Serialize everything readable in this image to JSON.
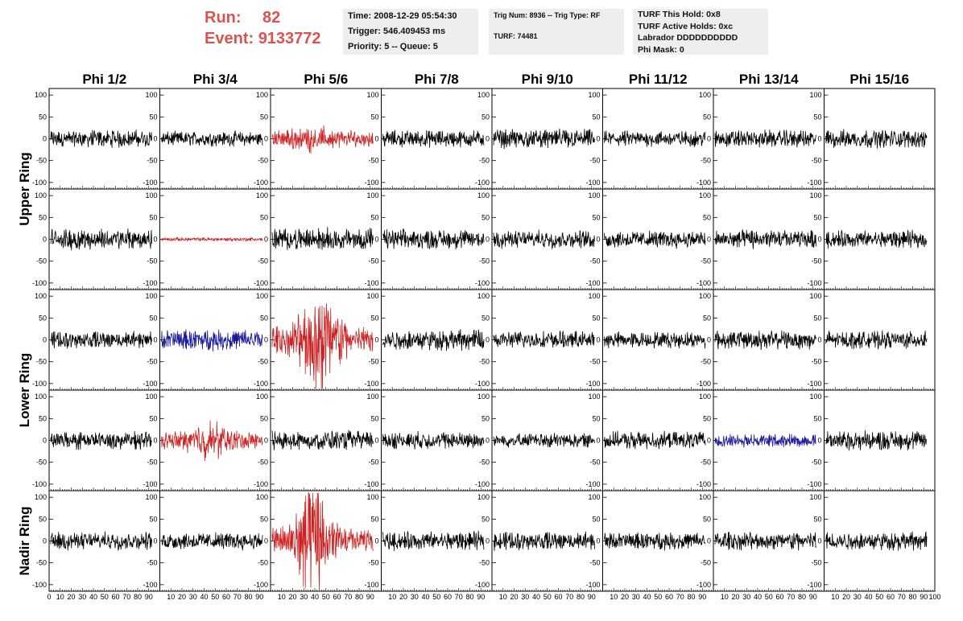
{
  "header": {
    "run_label": "Run:",
    "run_value": "82",
    "event_label": "Event:",
    "event_value": "9133772",
    "time": "Time: 2008-12-29 05:54:30",
    "trigger": "Trigger: 546.409453 ms",
    "priority": "Priority: 5 -- Queue: 5",
    "trig_num": "Trig Num: 8936 -- Trig Type: RF",
    "turf": "TURF: 74481",
    "turf_hold": "TURF This Hold: 0x8",
    "turf_active": "TURF Active Holds: 0xc",
    "labrador": "Labrador DDDDDDDDDD",
    "phi_mask": "Phi Mask: 0"
  },
  "colors": {
    "normal": "#000000",
    "red": "#cc2222",
    "blue": "#1a1a99",
    "header_red": "#d9534f",
    "info_bg": "#eeeeee"
  },
  "chart_data": {
    "type": "line",
    "columns": [
      "Phi 1/2",
      "Phi 3/4",
      "Phi 5/6",
      "Phi 7/8",
      "Phi 9/10",
      "Phi 11/12",
      "Phi 13/14",
      "Phi 15/16"
    ],
    "rows": [
      "Upper Ring",
      "Upper Ring",
      "Lower Ring",
      "Lower Ring",
      "Nadir Ring"
    ],
    "row_titles": [
      {
        "label": "Upper Ring",
        "rows": [
          0,
          1
        ]
      },
      {
        "label": "Lower Ring",
        "rows": [
          2,
          3
        ]
      },
      {
        "label": "Nadir Ring",
        "rows": [
          4
        ]
      }
    ],
    "xlim": [
      0,
      100
    ],
    "ylim": [
      -115,
      115
    ],
    "x_ticks": [
      "0",
      "10",
      "20",
      "30",
      "40",
      "50",
      "60",
      "70",
      "80",
      "90",
      "100"
    ],
    "y_ticks": [
      "100",
      "50",
      "0",
      "-50",
      "-100"
    ],
    "grid": false,
    "samples_per_trace": 260,
    "traces": [
      [
        {
          "color": "normal",
          "amp": 14,
          "burst": 0
        },
        {
          "color": "normal",
          "amp": 12,
          "burst": 0
        },
        {
          "color": "red",
          "amp": 14,
          "burst": 0.6
        },
        {
          "color": "normal",
          "amp": 14,
          "burst": 0
        },
        {
          "color": "normal",
          "amp": 16,
          "burst": 0
        },
        {
          "color": "normal",
          "amp": 13,
          "burst": 0
        },
        {
          "color": "normal",
          "amp": 14,
          "burst": 0
        },
        {
          "color": "normal",
          "amp": 15,
          "burst": 0
        }
      ],
      [
        {
          "color": "normal",
          "amp": 17,
          "burst": 0
        },
        {
          "color": "red",
          "amp": 3,
          "burst": 0
        },
        {
          "color": "normal",
          "amp": 18,
          "burst": 0
        },
        {
          "color": "normal",
          "amp": 16,
          "burst": 0
        },
        {
          "color": "normal",
          "amp": 14,
          "burst": 0
        },
        {
          "color": "normal",
          "amp": 14,
          "burst": 0
        },
        {
          "color": "normal",
          "amp": 15,
          "burst": 0
        },
        {
          "color": "normal",
          "amp": 14,
          "burst": 0
        }
      ],
      [
        {
          "color": "normal",
          "amp": 14,
          "burst": 0
        },
        {
          "color": "blue",
          "amp": 17,
          "burst": 0
        },
        {
          "color": "red",
          "amp": 22,
          "burst": 3.6
        },
        {
          "color": "normal",
          "amp": 17,
          "burst": 0
        },
        {
          "color": "normal",
          "amp": 14,
          "burst": 0
        },
        {
          "color": "normal",
          "amp": 13,
          "burst": 0
        },
        {
          "color": "normal",
          "amp": 15,
          "burst": 0
        },
        {
          "color": "normal",
          "amp": 14,
          "burst": 0
        }
      ],
      [
        {
          "color": "normal",
          "amp": 14,
          "burst": 0
        },
        {
          "color": "red",
          "amp": 14,
          "burst": 1.4
        },
        {
          "color": "normal",
          "amp": 16,
          "burst": 0
        },
        {
          "color": "normal",
          "amp": 14,
          "burst": 0
        },
        {
          "color": "normal",
          "amp": 12,
          "burst": 0
        },
        {
          "color": "normal",
          "amp": 14,
          "burst": 0
        },
        {
          "color": "blue",
          "amp": 11,
          "burst": 0
        },
        {
          "color": "normal",
          "amp": 16,
          "burst": 0
        }
      ],
      [
        {
          "color": "normal",
          "amp": 14,
          "burst": 0
        },
        {
          "color": "normal",
          "amp": 14,
          "burst": 0
        },
        {
          "color": "red",
          "amp": 20,
          "burst": 4.0
        },
        {
          "color": "normal",
          "amp": 15,
          "burst": 0
        },
        {
          "color": "normal",
          "amp": 15,
          "burst": 0
        },
        {
          "color": "normal",
          "amp": 14,
          "burst": 0
        },
        {
          "color": "normal",
          "amp": 15,
          "burst": 0
        },
        {
          "color": "normal",
          "amp": 15,
          "burst": 0
        }
      ]
    ]
  }
}
